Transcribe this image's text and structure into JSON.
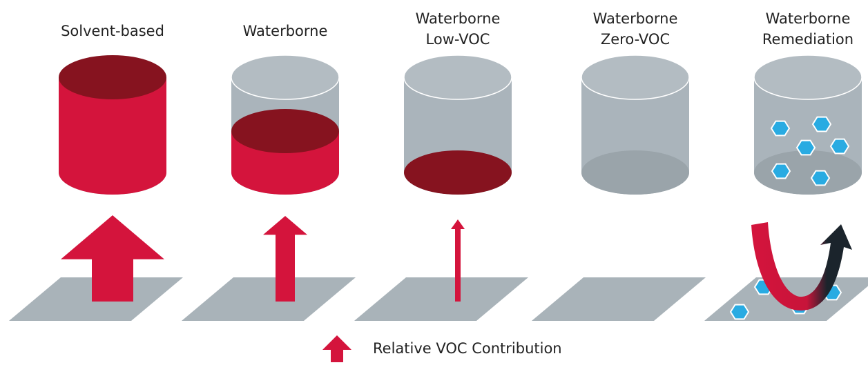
{
  "columns": [
    {
      "label": [
        "Solvent-based"
      ]
    },
    {
      "label": [
        "Waterborne"
      ]
    },
    {
      "label": [
        "Waterborne",
        "Low-VOC"
      ]
    },
    {
      "label": [
        "Waterborne",
        "Zero-VOC"
      ]
    },
    {
      "label": [
        "Waterborne",
        "Remediation"
      ]
    }
  ],
  "legend": {
    "label": "Relative VOC Contribution"
  }
}
